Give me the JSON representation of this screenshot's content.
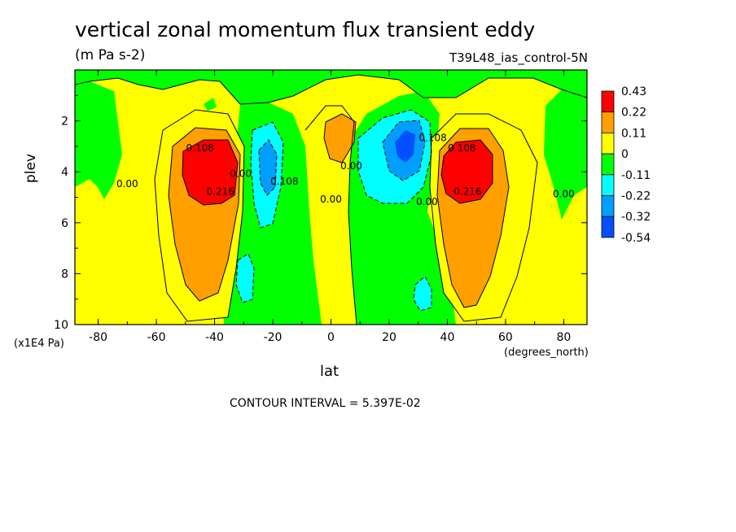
{
  "title": "vertical zonal momentum flux transient eddy",
  "units": "(m Pa s-2)",
  "run_id": "T39L48_ias_control-5N",
  "contour_interval": "CONTOUR INTERVAL = 5.397E-02",
  "chart_data": {
    "type": "heatmap",
    "xlabel": "lat",
    "ylabel": "plev",
    "x_units": "(degrees_north)",
    "y_units": "(x1E4 Pa)",
    "xlim": [
      -88,
      88
    ],
    "ylim": [
      10,
      0
    ],
    "x_ticks": [
      -80,
      -60,
      -40,
      -20,
      0,
      20,
      40,
      60,
      80
    ],
    "y_ticks": [
      2,
      4,
      6,
      8,
      10
    ],
    "colorbar": {
      "levels": [
        "0.43",
        "0.22",
        "0.11",
        "0",
        "-0.11",
        "-0.22",
        "-0.32",
        "-0.54"
      ],
      "colors": [
        "#ff0000",
        "#ff9f00",
        "#ffff00",
        "#00ff00",
        "#00ffff",
        "#009fff",
        "#0050ff"
      ]
    },
    "contour_labels": [
      {
        "text": "0.108",
        "lat": -45,
        "plev": 3.2
      },
      {
        "text": "0.216",
        "lat": -38,
        "plev": 4.9
      },
      {
        "text": "0.00",
        "lat": -70,
        "plev": 4.6
      },
      {
        "text": "0.00",
        "lat": -31,
        "plev": 4.2
      },
      {
        "text": "0.108",
        "lat": -16,
        "plev": 4.5
      },
      {
        "text": "0.00",
        "lat": 0,
        "plev": 5.2
      },
      {
        "text": "0.00",
        "lat": 7,
        "plev": 3.9
      },
      {
        "text": "0.108",
        "lat": 35,
        "plev": 2.8
      },
      {
        "text": "0.00",
        "lat": 33,
        "plev": 5.3
      },
      {
        "text": "0.108",
        "lat": 45,
        "plev": 3.2
      },
      {
        "text": "0.216",
        "lat": 47,
        "plev": 4.9
      },
      {
        "text": "0.00",
        "lat": 80,
        "plev": 5.0
      }
    ]
  }
}
